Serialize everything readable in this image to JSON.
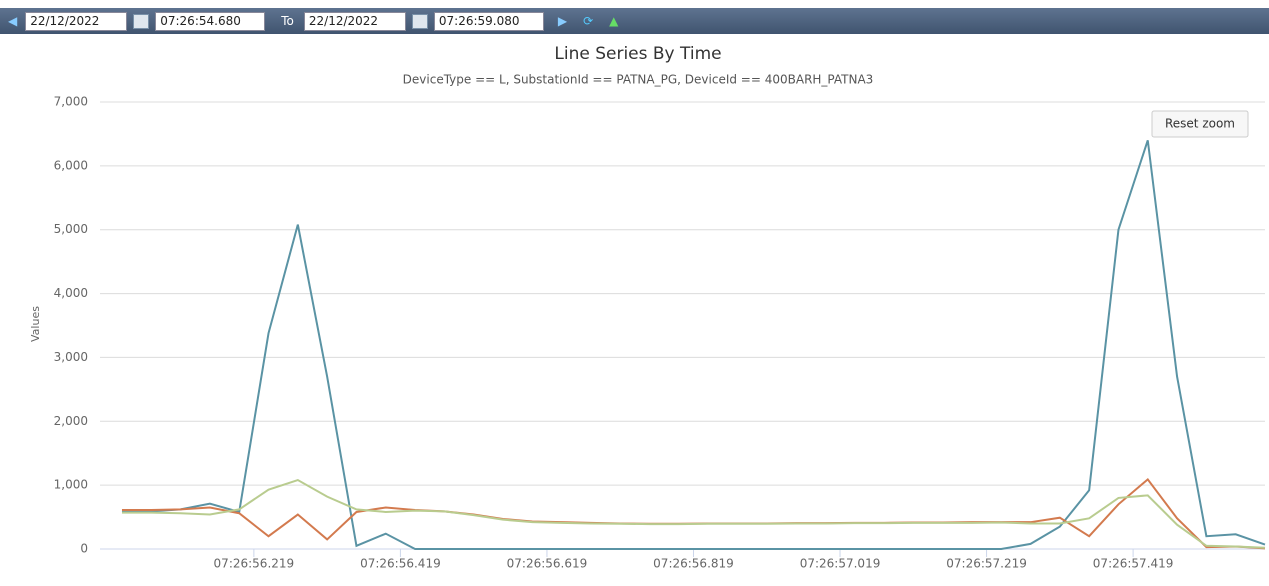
{
  "toolbar": {
    "from_date": "22/12/2022",
    "from_time": "07:26:54.680",
    "to_label": "To",
    "to_date": "22/12/2022",
    "to_time": "07:26:59.080"
  },
  "reset_zoom": "Reset zoom",
  "chart_data": {
    "type": "line",
    "title": "Line Series By Time",
    "subtitle": "DeviceType == L, SubstationId == PATNA_PG, DeviceId == 400BARH_PATNA3",
    "y_label": "Values",
    "x": [
      "07:26:56.039",
      "07:26:56.079",
      "07:26:56.119",
      "07:26:56.159",
      "07:26:56.199",
      "07:26:56.239",
      "07:26:56.279",
      "07:26:56.319",
      "07:26:56.359",
      "07:26:56.399",
      "07:26:56.439",
      "07:26:56.479",
      "07:26:56.519",
      "07:26:56.559",
      "07:26:56.599",
      "07:26:56.639",
      "07:26:56.679",
      "07:26:56.719",
      "07:26:56.759",
      "07:26:56.799",
      "07:26:56.839",
      "07:26:56.879",
      "07:26:56.919",
      "07:26:56.959",
      "07:26:56.999",
      "07:26:57.039",
      "07:26:57.079",
      "07:26:57.119",
      "07:26:57.159",
      "07:26:57.199",
      "07:26:57.239",
      "07:26:57.279",
      "07:26:57.319",
      "07:26:57.359",
      "07:26:57.399",
      "07:26:57.439",
      "07:26:57.479",
      "07:26:57.519",
      "07:26:57.559",
      "07:26:57.599"
    ],
    "series": [
      {
        "color": "#5a93a4",
        "values": [
          580,
          590,
          620,
          710,
          580,
          3380,
          5080,
          2700,
          50,
          240,
          0,
          0,
          0,
          0,
          0,
          0,
          0,
          0,
          0,
          0,
          0,
          0,
          0,
          0,
          0,
          0,
          0,
          0,
          0,
          0,
          0,
          80,
          350,
          920,
          5000,
          6400,
          2700,
          200,
          230,
          70
        ]
      },
      {
        "color": "#d37a4e",
        "values": [
          610,
          610,
          620,
          650,
          560,
          200,
          540,
          150,
          580,
          650,
          610,
          590,
          540,
          470,
          430,
          420,
          410,
          400,
          395,
          395,
          400,
          400,
          400,
          405,
          405,
          410,
          410,
          415,
          415,
          420,
          420,
          420,
          490,
          200,
          700,
          1090,
          480,
          30,
          40,
          10
        ]
      },
      {
        "color": "#b9cc8f",
        "values": [
          570,
          570,
          560,
          540,
          620,
          930,
          1080,
          820,
          620,
          580,
          600,
          590,
          530,
          460,
          420,
          410,
          400,
          395,
          390,
          390,
          395,
          395,
          395,
          400,
          400,
          405,
          405,
          410,
          410,
          410,
          415,
          400,
          400,
          480,
          800,
          840,
          380,
          50,
          40,
          20
        ]
      }
    ],
    "xlim": [
      "07:26:56.009",
      "07:26:57.599"
    ],
    "xticks": [
      "07:26:56.219",
      "07:26:56.419",
      "07:26:56.619",
      "07:26:56.819",
      "07:26:57.019",
      "07:26:57.219",
      "07:26:57.419"
    ],
    "ylim": [
      0,
      7000
    ],
    "yticks": [
      0,
      {
        "value": 1000,
        "label": "1,000"
      },
      {
        "value": 2000,
        "label": "2,000"
      },
      {
        "value": 3000,
        "label": "3,000"
      },
      {
        "value": 4000,
        "label": "4,000"
      },
      {
        "value": 5000,
        "label": "5,000"
      },
      {
        "value": 6000,
        "label": "6,000"
      },
      {
        "value": 7000,
        "label": "7,000"
      }
    ],
    "grid": true
  }
}
